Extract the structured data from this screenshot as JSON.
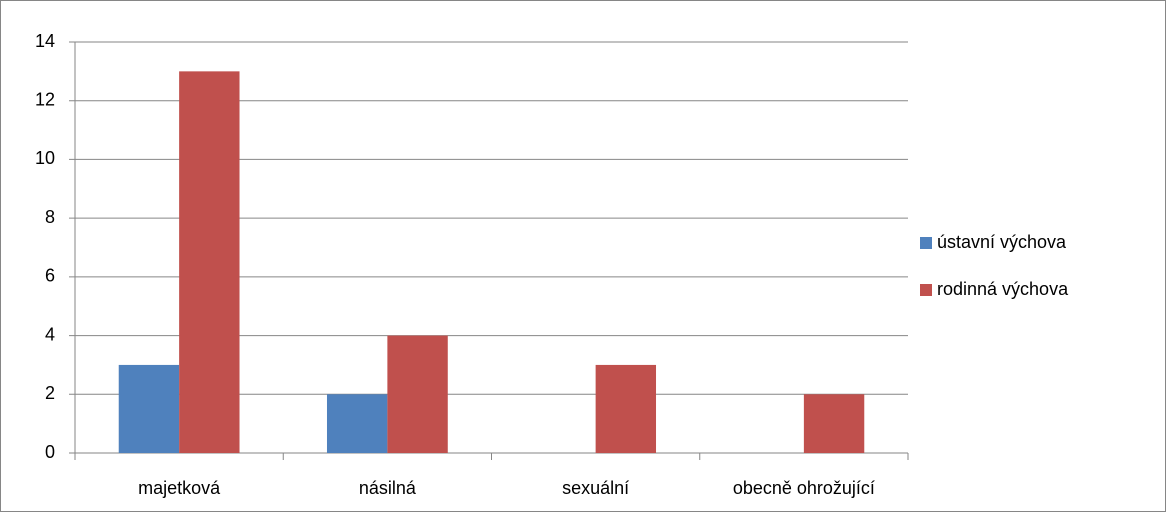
{
  "chart_data": {
    "type": "bar",
    "categories": [
      "majetková",
      "násilná",
      "sexuální",
      "obecně ohrožující"
    ],
    "series": [
      {
        "name": "ústavní výchova",
        "color": "#4f81bd",
        "values": [
          3,
          2,
          0,
          0
        ]
      },
      {
        "name": "rodinná výchova",
        "color": "#c0504d",
        "values": [
          13,
          4,
          3,
          2
        ]
      }
    ],
    "ylim": [
      0,
      14
    ],
    "yticks": [
      0,
      2,
      4,
      6,
      8,
      10,
      12,
      14
    ],
    "grid": true,
    "legend": "right"
  }
}
